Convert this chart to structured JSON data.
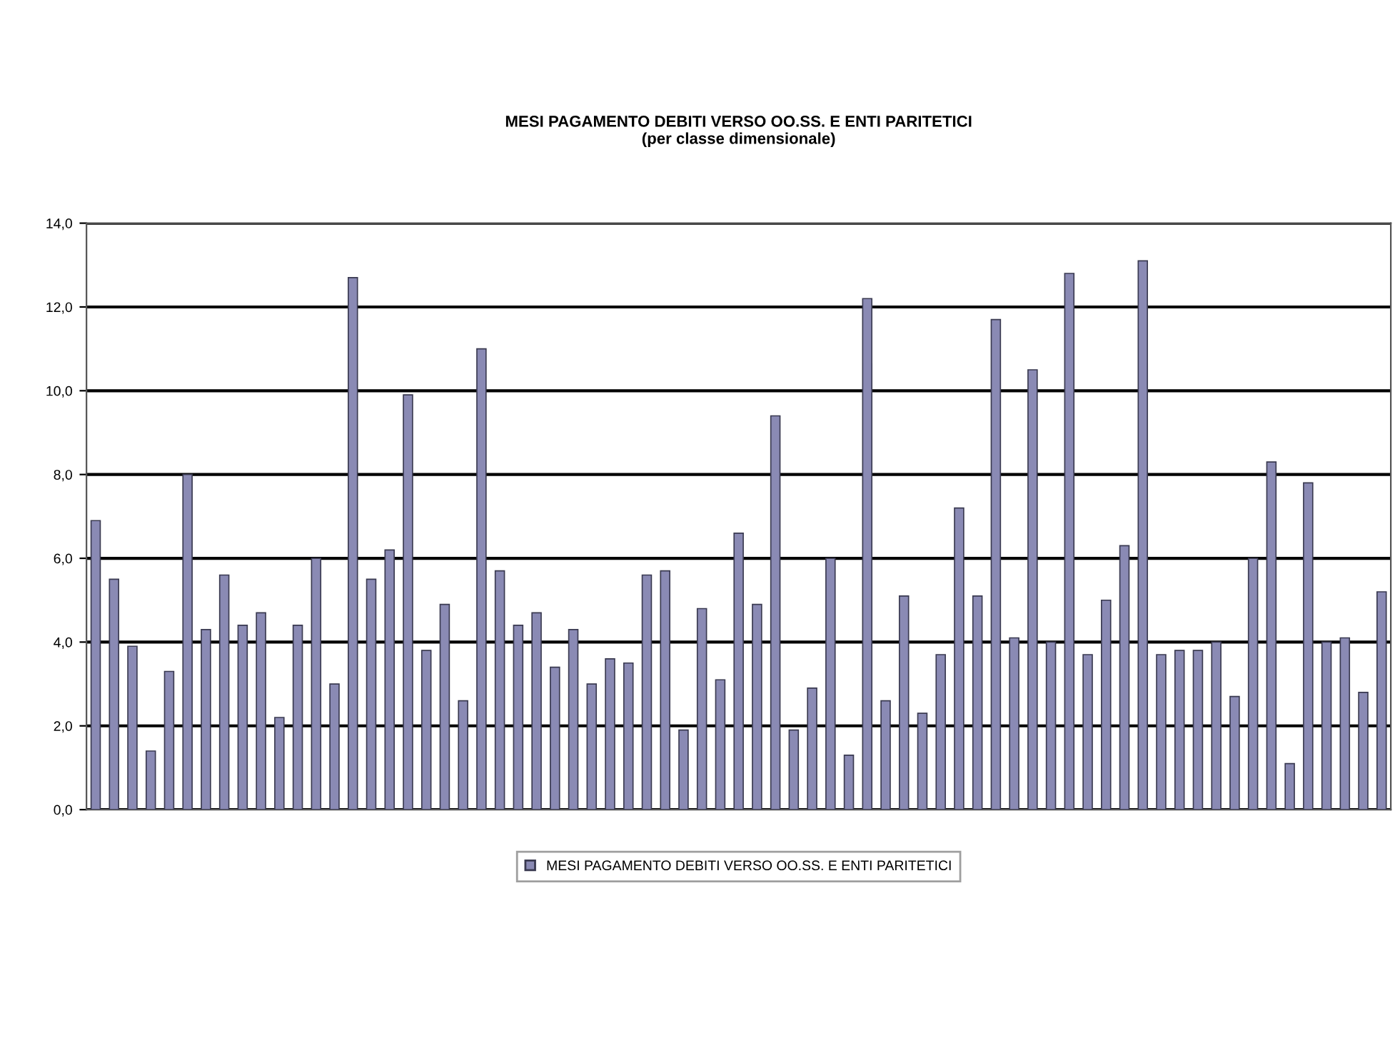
{
  "chart_data": {
    "type": "bar",
    "title": "MESI PAGAMENTO DEBITI VERSO OO.SS. E ENTI PARITETICI\n(per classe dimensionale)",
    "categories": [
      null,
      null,
      null,
      null,
      null,
      null,
      null,
      null,
      null,
      null,
      null,
      null,
      null,
      null,
      null,
      null,
      null,
      null,
      null,
      null,
      null,
      null,
      null,
      null,
      null,
      null,
      null,
      null,
      null,
      null,
      null,
      null,
      null,
      null,
      null,
      null,
      null,
      null,
      null,
      null,
      null,
      null,
      null,
      null,
      null,
      null,
      null,
      null,
      null,
      null,
      null,
      null,
      null,
      null,
      null,
      null,
      null,
      null,
      null,
      null,
      null,
      null,
      null,
      null,
      null,
      null,
      null,
      null,
      null,
      null,
      null
    ],
    "series": [
      {
        "name": "MESI PAGAMENTO DEBITI VERSO OO.SS. E ENTI PARITETICI",
        "color": "#8a8ab4",
        "values": [
          6.9,
          5.5,
          3.9,
          1.4,
          3.3,
          8.0,
          4.3,
          5.6,
          4.4,
          4.7,
          2.2,
          4.4,
          6.0,
          3.0,
          12.7,
          5.5,
          6.2,
          9.9,
          3.8,
          4.9,
          2.6,
          11.0,
          5.7,
          4.4,
          4.7,
          3.4,
          4.3,
          3.0,
          3.6,
          3.5,
          5.6,
          5.7,
          1.9,
          4.8,
          3.1,
          6.6,
          4.9,
          9.4,
          1.9,
          2.9,
          6.0,
          1.3,
          12.2,
          2.6,
          5.1,
          2.3,
          3.7,
          7.2,
          5.1,
          11.7,
          4.1,
          10.5,
          4.0,
          12.8,
          3.7,
          5.0,
          6.3,
          13.1,
          3.7,
          3.8,
          3.8,
          4.0,
          2.7,
          6.0,
          8.3,
          1.1,
          7.8,
          4.0,
          4.1,
          2.8,
          5.2
        ]
      }
    ],
    "ylim": [
      0,
      14
    ],
    "yticks": [
      {
        "value": 0,
        "label": "0,0"
      },
      {
        "value": 2,
        "label": "2,0"
      },
      {
        "value": 4,
        "label": "4,0"
      },
      {
        "value": 6,
        "label": "6,0"
      },
      {
        "value": 8,
        "label": "8,0"
      },
      {
        "value": 10,
        "label": "10,0"
      },
      {
        "value": 12,
        "label": "12,0"
      },
      {
        "value": 14,
        "label": "14,0"
      }
    ],
    "grid": "y",
    "legend": "bottom"
  }
}
